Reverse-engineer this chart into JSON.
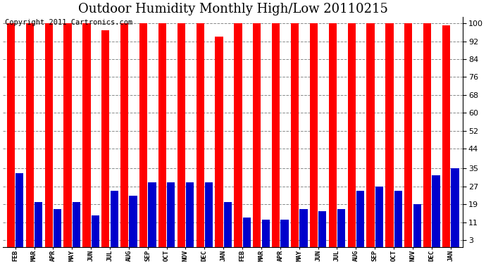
{
  "title": "Outdoor Humidity Monthly High/Low 20110215",
  "copyright": "Copyright 2011 Cartronics.com",
  "months": [
    "FEB",
    "MAR",
    "APR",
    "MAY",
    "JUN",
    "JUL",
    "AUG",
    "SEP",
    "OCT",
    "NOV",
    "DEC",
    "JAN",
    "FEB",
    "MAR",
    "APR",
    "MAY",
    "JUN",
    "JUL",
    "AUG",
    "SEP",
    "OCT",
    "NOV",
    "DEC",
    "JAN"
  ],
  "highs": [
    100,
    100,
    100,
    100,
    100,
    97,
    100,
    100,
    100,
    100,
    100,
    94,
    100,
    100,
    100,
    100,
    100,
    100,
    100,
    100,
    100,
    100,
    100,
    99
  ],
  "lows": [
    33,
    20,
    17,
    20,
    14,
    25,
    23,
    29,
    29,
    29,
    29,
    20,
    13,
    12,
    12,
    17,
    16,
    17,
    25,
    27,
    25,
    19,
    32,
    35
  ],
  "bar_color_high": "#ff0000",
  "bar_color_low": "#0000cc",
  "bg_color": "#ffffff",
  "plot_bg_color": "#ffffff",
  "grid_color": "#888888",
  "yticks": [
    3,
    11,
    19,
    27,
    35,
    44,
    52,
    60,
    68,
    76,
    84,
    92,
    100
  ],
  "ylim": [
    0,
    103
  ],
  "title_fontsize": 13,
  "copyright_fontsize": 7.5
}
